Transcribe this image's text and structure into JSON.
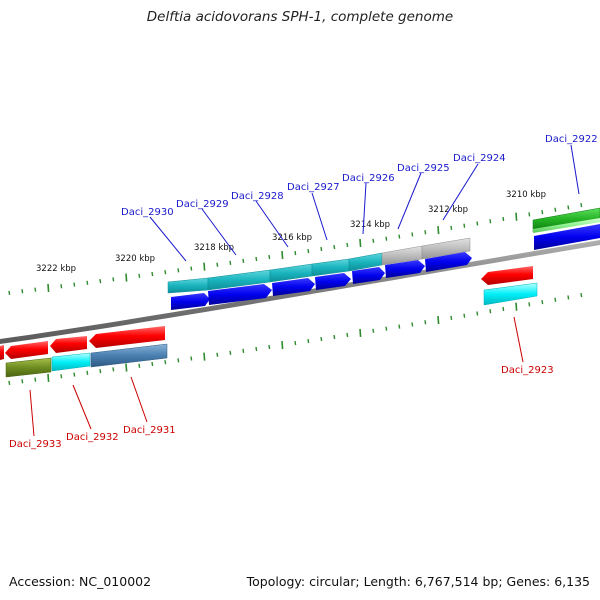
{
  "title": "Delftia acidovorans SPH-1, complete genome",
  "footer": {
    "accession": "Accession: NC_010002",
    "summary": "Topology: circular; Length: 6,767,514 bp; Genes: 6,135"
  },
  "colors": {
    "forward_label": "#1a1acc",
    "reverse_label": "#cc0000",
    "tick": "#2e8b2e",
    "backbone": "#808080"
  },
  "axis_labels": [
    "3222 kbp",
    "3220 kbp",
    "3218 kbp",
    "3216 kbp",
    "3214 kbp",
    "3212 kbp",
    "3210 kbp"
  ],
  "genes_top": [
    {
      "name": "Daci_2930",
      "strand": "forward"
    },
    {
      "name": "Daci_2929",
      "strand": "forward"
    },
    {
      "name": "Daci_2928",
      "strand": "forward"
    },
    {
      "name": "Daci_2927",
      "strand": "forward"
    },
    {
      "name": "Daci_2926",
      "strand": "forward"
    },
    {
      "name": "Daci_2925",
      "strand": "forward"
    },
    {
      "name": "Daci_2924",
      "strand": "forward"
    },
    {
      "name": "Daci_2922",
      "strand": "forward"
    }
  ],
  "genes_bottom": [
    {
      "name": "Daci_2933",
      "strand": "reverse"
    },
    {
      "name": "Daci_2932",
      "strand": "reverse"
    },
    {
      "name": "Daci_2931",
      "strand": "reverse"
    },
    {
      "name": "Daci_2923",
      "strand": "reverse"
    }
  ]
}
